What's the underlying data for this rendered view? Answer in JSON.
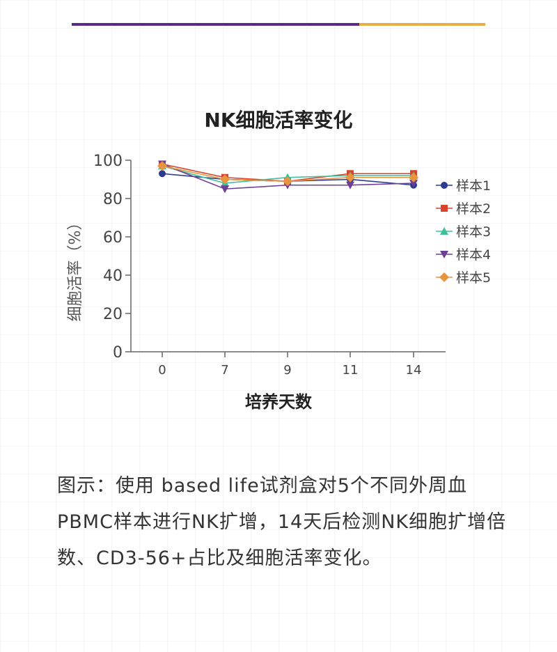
{
  "chart_data": {
    "type": "line",
    "title": "NK细胞活率变化",
    "xlabel": "培养天数",
    "ylabel": "细胞活率（%）",
    "categories": [
      "0",
      "7",
      "9",
      "11",
      "14"
    ],
    "ylim": [
      0,
      100
    ],
    "yticks": [
      0,
      20,
      40,
      60,
      80,
      100
    ],
    "grid": false,
    "legend_position": "right",
    "series": [
      {
        "name": "样本1",
        "marker": "circle",
        "color": "#2b3a8f",
        "values": [
          93,
          90,
          89,
          90,
          87
        ]
      },
      {
        "name": "样本2",
        "marker": "square",
        "color": "#d8432b",
        "values": [
          98,
          91,
          89,
          93,
          93
        ]
      },
      {
        "name": "样本3",
        "marker": "triangle-up",
        "color": "#3dbf99",
        "values": [
          97,
          88,
          91,
          92,
          92
        ]
      },
      {
        "name": "样本4",
        "marker": "triangle-down",
        "color": "#6e3f95",
        "values": [
          98,
          85,
          87,
          87,
          88
        ]
      },
      {
        "name": "样本5",
        "marker": "diamond",
        "color": "#e7963f",
        "values": [
          97,
          90,
          89,
          91,
          91
        ]
      }
    ]
  },
  "caption": "图示：使用 based life试剂盒对5个不同外周血PBMC样本进行NK扩增，14天后检测NK细胞扩增倍数、CD3-56+占比及细胞活率变化。",
  "colors": {
    "rule_primary": "#5b2a86",
    "rule_accent": "#e7ae4c"
  }
}
